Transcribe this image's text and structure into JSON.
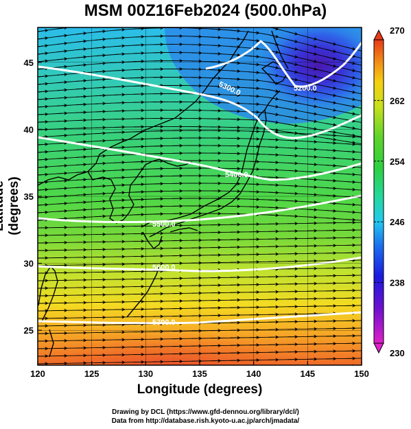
{
  "title": "MSM 00Z16Feb2024 (500.0hPa)",
  "x_axis": {
    "label": "Longitude (degrees)",
    "ticks": [
      "120",
      "125",
      "130",
      "135",
      "140",
      "145",
      "150"
    ],
    "range": [
      120,
      150
    ]
  },
  "y_axis": {
    "label": "Latitude  (degrees)",
    "ticks": [
      "25",
      "30",
      "35",
      "40",
      "45"
    ],
    "range": [
      22.4,
      47.6
    ]
  },
  "colorbar": {
    "ticks": [
      "230",
      "238",
      "246",
      "254",
      "262",
      "270"
    ],
    "range": [
      230,
      270
    ]
  },
  "contour_labels": [
    "5200.0",
    "5300.0",
    "5400.0",
    "5500.0",
    "5600.0",
    "5700.0",
    "5800.0"
  ],
  "credits": [
    "Drawing by DCL (https://www.gfd-dennou.org/library/dcl/)",
    "Data from http://database.rish.kyoto-u.ac.jp/arch/jmadata/"
  ]
}
